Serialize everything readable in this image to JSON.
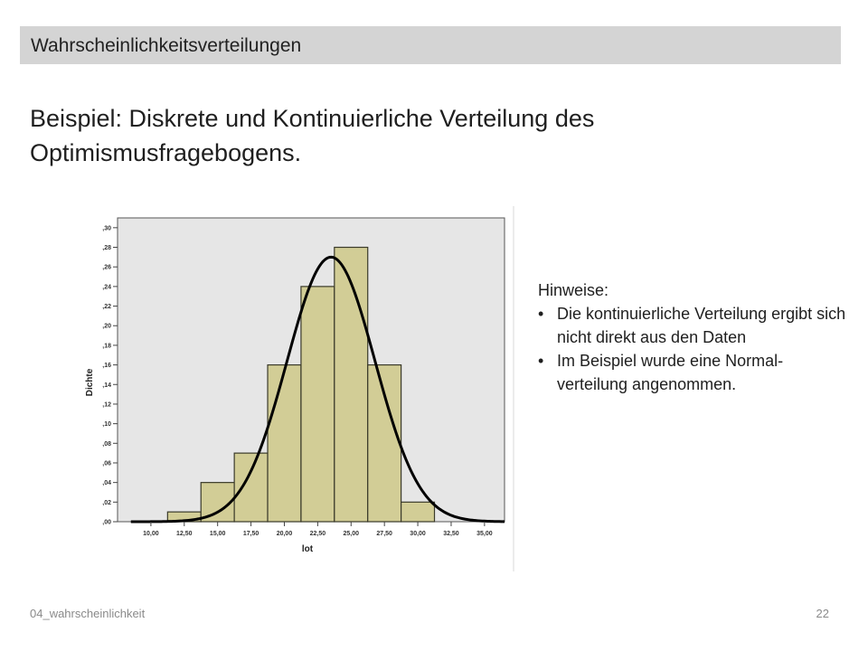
{
  "header": {
    "title": "Wahrscheinlichkeitsverteilungen"
  },
  "slide": {
    "title": "Beispiel: Diskrete und Kontinuierliche Verteilung des Optimismusfragebogens."
  },
  "notes": {
    "heading": "Hinweise:",
    "items": [
      "Die kontinuierliche Verteilung ergibt sich nicht direkt aus den Daten",
      "Im Beispiel wurde eine Normal-verteilung angenommen."
    ]
  },
  "footer": {
    "left": "04_wahrscheinlichkeit",
    "page_number": "22"
  },
  "colors": {
    "header_bg": "#d4d4d4",
    "plot_bg": "#e6e6e6",
    "bar_fill": "#d2cd96",
    "bar_stroke": "#3a3a2a",
    "curve": "#000000"
  },
  "chart_data": {
    "type": "bar",
    "xlabel": "lot",
    "ylabel": "Dichte",
    "xlim": [
      7.5,
      36.5
    ],
    "ylim": [
      0,
      0.31
    ],
    "xticks": [
      10,
      12.5,
      15,
      17.5,
      20,
      22.5,
      25,
      27.5,
      30,
      32.5,
      35
    ],
    "xtick_labels": [
      "10,00",
      "12,50",
      "15,00",
      "17,50",
      "20,00",
      "22,50",
      "25,00",
      "27,50",
      "30,00",
      "32,50",
      "35,00"
    ],
    "yticks": [
      0,
      0.02,
      0.04,
      0.06,
      0.08,
      0.1,
      0.12,
      0.14,
      0.16,
      0.18,
      0.2,
      0.22,
      0.24,
      0.26,
      0.28,
      0.3
    ],
    "ytick_labels": [
      ",00",
      ",02",
      ",04",
      ",06",
      ",08",
      ",10",
      ",12",
      ",14",
      ",16",
      ",18",
      ",20",
      ",22",
      ",24",
      ",26",
      ",28",
      ",30"
    ],
    "bins": [
      {
        "from": 11.25,
        "to": 13.75,
        "density": 0.01
      },
      {
        "from": 13.75,
        "to": 16.25,
        "density": 0.04
      },
      {
        "from": 16.25,
        "to": 18.75,
        "density": 0.07
      },
      {
        "from": 18.75,
        "to": 21.25,
        "density": 0.16
      },
      {
        "from": 21.25,
        "to": 23.75,
        "density": 0.24
      },
      {
        "from": 23.75,
        "to": 26.25,
        "density": 0.28
      },
      {
        "from": 26.25,
        "to": 28.75,
        "density": 0.16
      },
      {
        "from": 28.75,
        "to": 31.25,
        "density": 0.02
      }
    ],
    "normal_curve": {
      "mean": 23.5,
      "sd": 3.3,
      "peak_density": 0.27
    },
    "grid": false,
    "legend": "none"
  }
}
